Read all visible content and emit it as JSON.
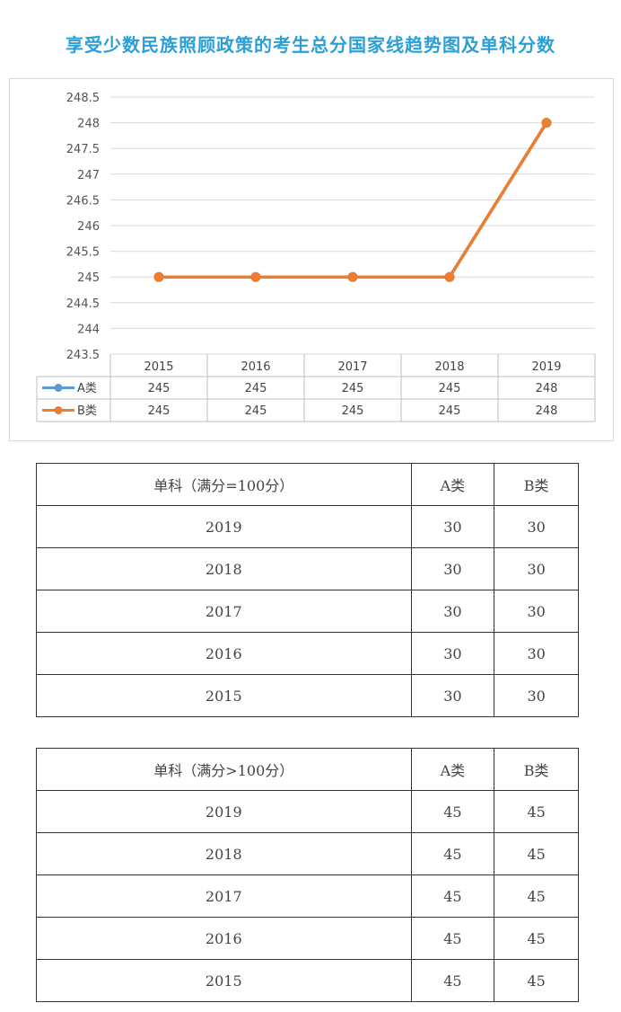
{
  "title": "享受少数民族照顾政策的考生总分国家线趋势图及单科分数",
  "chart_data": {
    "type": "line",
    "title": "享受少数民族照顾政策的考生总分国家线趋势图及单科分数",
    "categories": [
      "2015",
      "2016",
      "2017",
      "2018",
      "2019"
    ],
    "series": [
      {
        "name": "A类",
        "values": [
          245,
          245,
          245,
          245,
          248
        ],
        "color": "#5b9bd5"
      },
      {
        "name": "B类",
        "values": [
          245,
          245,
          245,
          245,
          248
        ],
        "color": "#ed7d31"
      }
    ],
    "ylim": [
      243.5,
      248.5
    ],
    "yticks": [
      "248.5",
      "248",
      "247.5",
      "247",
      "246.5",
      "246",
      "245.5",
      "245",
      "244.5",
      "244",
      "243.5"
    ],
    "grid": true,
    "data_table": true
  },
  "table1": {
    "headers": [
      "单科（满分=100分）",
      "A类",
      "B类"
    ],
    "rows": [
      [
        "2019",
        "30",
        "30"
      ],
      [
        "2018",
        "30",
        "30"
      ],
      [
        "2017",
        "30",
        "30"
      ],
      [
        "2016",
        "30",
        "30"
      ],
      [
        "2015",
        "30",
        "30"
      ]
    ]
  },
  "table2": {
    "headers": [
      "单科（满分>100分）",
      "A类",
      "B类"
    ],
    "rows": [
      [
        "2019",
        "45",
        "45"
      ],
      [
        "2018",
        "45",
        "45"
      ],
      [
        "2017",
        "45",
        "45"
      ],
      [
        "2016",
        "45",
        "45"
      ],
      [
        "2015",
        "45",
        "45"
      ]
    ]
  }
}
